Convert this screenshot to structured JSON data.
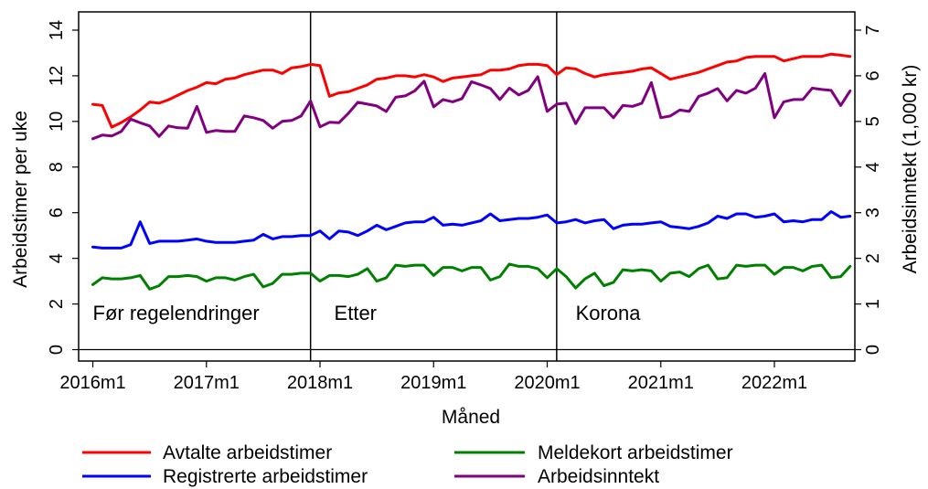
{
  "chart_data": {
    "type": "line",
    "xlabel": "Måned",
    "ylabel_left": "Arbeidstimer per uke",
    "ylabel_right": "Arbeidsinntekt (1,000 kr)",
    "ylim_left": [
      -0.5,
      14.8
    ],
    "ylim_right": [
      -0.25,
      7.4
    ],
    "yticks_left": [
      0,
      2,
      4,
      6,
      8,
      10,
      12,
      14
    ],
    "yticks_right": [
      0,
      1,
      2,
      3,
      4,
      5,
      6,
      7
    ],
    "x_range": [
      -1.5,
      80.5
    ],
    "xticks": [
      {
        "x": 0,
        "label": "2016m1"
      },
      {
        "x": 12,
        "label": "2017m1"
      },
      {
        "x": 24,
        "label": "2018m1"
      },
      {
        "x": 36,
        "label": "2019m1"
      },
      {
        "x": 48,
        "label": "2020m1"
      },
      {
        "x": 60,
        "label": "2021m1"
      },
      {
        "x": 72,
        "label": "2022m1"
      }
    ],
    "vlines": [
      23,
      49
    ],
    "periods": [
      {
        "x": 0,
        "label": "Før regelendringer"
      },
      {
        "x": 25.5,
        "label": "Etter"
      },
      {
        "x": 51,
        "label": "Korona"
      }
    ],
    "series": [
      {
        "name": "Avtalte arbeidstimer",
        "color": "#ff0000",
        "axis": "left",
        "values": [
          10.75,
          10.7,
          9.75,
          9.95,
          10.2,
          10.5,
          10.85,
          10.8,
          10.95,
          11.15,
          11.35,
          11.5,
          11.7,
          11.65,
          11.85,
          11.9,
          12.05,
          12.15,
          12.25,
          12.25,
          12.1,
          12.35,
          12.4,
          12.5,
          12.45,
          11.1,
          11.25,
          11.3,
          11.45,
          11.6,
          11.85,
          11.9,
          12.0,
          12.0,
          11.95,
          12.05,
          11.95,
          11.75,
          11.9,
          11.95,
          12.0,
          12.05,
          12.25,
          12.25,
          12.3,
          12.45,
          12.5,
          12.5,
          12.45,
          12.05,
          12.35,
          12.3,
          12.1,
          11.95,
          12.05,
          12.1,
          12.15,
          12.2,
          12.3,
          12.35,
          12.1,
          11.85,
          11.95,
          12.05,
          12.15,
          12.3,
          12.45,
          12.6,
          12.65,
          12.8,
          12.85,
          12.85,
          12.85,
          12.65,
          12.75,
          12.85,
          12.85,
          12.85,
          12.95,
          12.9,
          12.85
        ]
      },
      {
        "name": "Registrerte arbeidstimer",
        "color": "#0000ff",
        "axis": "left",
        "values": [
          4.5,
          4.45,
          4.45,
          4.45,
          4.6,
          5.6,
          4.65,
          4.75,
          4.75,
          4.75,
          4.8,
          4.85,
          4.75,
          4.7,
          4.7,
          4.7,
          4.75,
          4.8,
          5.05,
          4.85,
          4.95,
          4.95,
          5.0,
          5.0,
          5.2,
          4.85,
          5.2,
          5.15,
          5.0,
          5.2,
          5.45,
          5.25,
          5.4,
          5.55,
          5.6,
          5.6,
          5.8,
          5.45,
          5.5,
          5.45,
          5.55,
          5.65,
          5.95,
          5.65,
          5.7,
          5.75,
          5.75,
          5.8,
          5.9,
          5.55,
          5.6,
          5.7,
          5.55,
          5.65,
          5.7,
          5.3,
          5.45,
          5.5,
          5.5,
          5.55,
          5.6,
          5.4,
          5.35,
          5.3,
          5.4,
          5.55,
          5.85,
          5.75,
          5.95,
          5.95,
          5.8,
          5.85,
          5.95,
          5.6,
          5.65,
          5.6,
          5.7,
          5.7,
          6.05,
          5.8,
          5.85
        ]
      },
      {
        "name": "Meldekort arbeidstimer",
        "color": "#008000",
        "axis": "left",
        "values": [
          2.85,
          3.15,
          3.1,
          3.1,
          3.15,
          3.25,
          2.65,
          2.8,
          3.2,
          3.2,
          3.25,
          3.2,
          3.0,
          3.15,
          3.15,
          3.05,
          3.2,
          3.3,
          2.75,
          2.9,
          3.3,
          3.3,
          3.35,
          3.35,
          3.0,
          3.25,
          3.25,
          3.2,
          3.3,
          3.55,
          3.0,
          3.15,
          3.7,
          3.65,
          3.7,
          3.7,
          3.25,
          3.6,
          3.6,
          3.45,
          3.6,
          3.6,
          3.05,
          3.2,
          3.75,
          3.65,
          3.65,
          3.55,
          3.15,
          3.55,
          3.2,
          2.7,
          3.1,
          3.35,
          2.8,
          2.95,
          3.5,
          3.45,
          3.5,
          3.45,
          3.0,
          3.35,
          3.4,
          3.2,
          3.55,
          3.7,
          3.1,
          3.15,
          3.7,
          3.65,
          3.7,
          3.7,
          3.3,
          3.6,
          3.6,
          3.45,
          3.65,
          3.7,
          3.15,
          3.2,
          3.65
        ]
      },
      {
        "name": "Arbeidsinntekt",
        "color": "#800080",
        "axis": "right",
        "values": [
          4.62,
          4.7,
          4.68,
          4.78,
          5.05,
          4.97,
          4.9,
          4.67,
          4.9,
          4.86,
          4.85,
          5.33,
          4.76,
          4.8,
          4.78,
          4.78,
          5.12,
          5.08,
          5.02,
          4.85,
          5.0,
          5.02,
          5.12,
          5.45,
          4.88,
          4.98,
          4.97,
          5.18,
          5.42,
          5.38,
          5.34,
          5.22,
          5.53,
          5.56,
          5.67,
          5.88,
          5.32,
          5.48,
          5.43,
          5.5,
          5.87,
          5.8,
          5.72,
          5.48,
          5.73,
          5.58,
          5.68,
          5.98,
          5.22,
          5.38,
          5.4,
          4.95,
          5.3,
          5.3,
          5.3,
          5.08,
          5.35,
          5.33,
          5.4,
          5.85,
          5.08,
          5.12,
          5.25,
          5.22,
          5.55,
          5.62,
          5.72,
          5.45,
          5.68,
          5.62,
          5.73,
          6.05,
          5.08,
          5.43,
          5.48,
          5.48,
          5.73,
          5.7,
          5.68,
          5.35,
          5.67
        ]
      }
    ]
  }
}
